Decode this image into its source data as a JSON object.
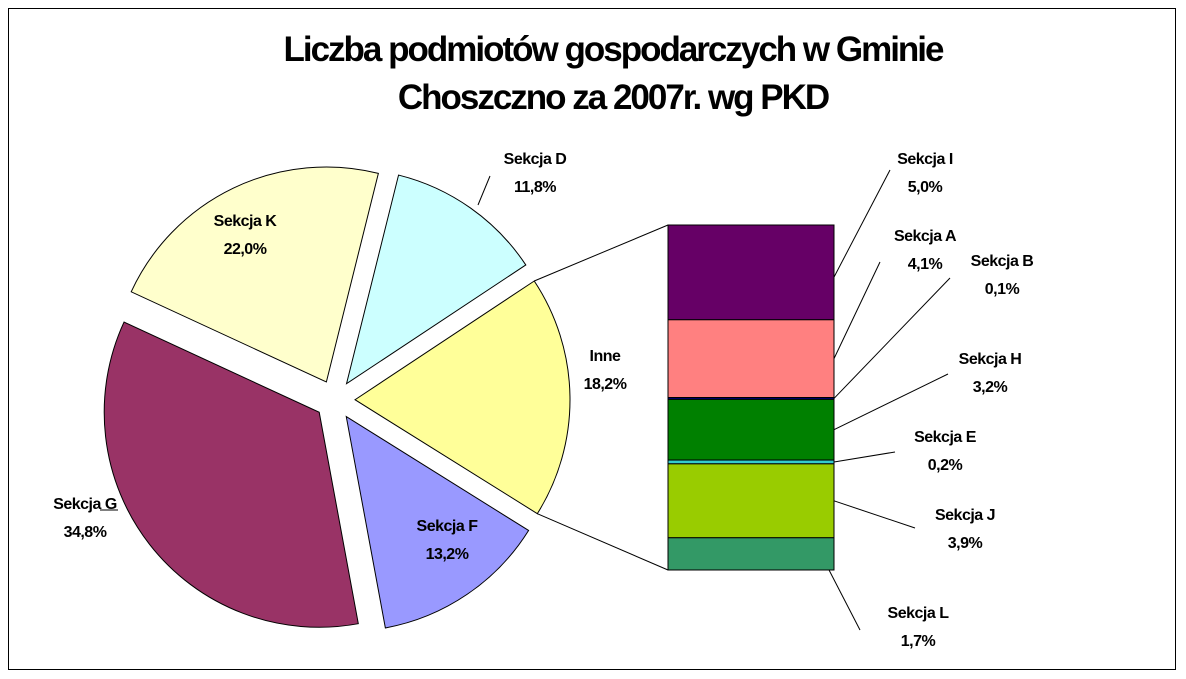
{
  "chart_data": {
    "type": "pie",
    "title": "Liczba podmiotów gospodarczych w Gminie Choszczno za 2007r. wg PKD",
    "categories": [
      "Sekcja D",
      "Inne",
      "Sekcja F",
      "Sekcja G",
      "Sekcja K"
    ],
    "values": [
      11.8,
      18.2,
      13.2,
      34.8,
      22.0
    ],
    "value_labels": [
      "11,8%",
      "18,2%",
      "13,2%",
      "34,8%",
      "22,0%"
    ],
    "colors": [
      "#ccffff",
      "#ffff99",
      "#9999ff",
      "#993366",
      "#ffffcc"
    ],
    "breakdown": {
      "type": "bar",
      "categories": [
        "Sekcja I",
        "Sekcja A",
        "Sekcja B",
        "Sekcja H",
        "Sekcja E",
        "Sekcja J",
        "Sekcja L"
      ],
      "values": [
        5.0,
        4.1,
        0.1,
        3.2,
        0.2,
        3.9,
        1.7
      ],
      "value_labels": [
        "5,0%",
        "4,1%",
        "0,1%",
        "3,2%",
        "0,2%",
        "3,9%",
        "1,7%"
      ],
      "colors": [
        "#660066",
        "#ff8080",
        "#000080",
        "#008000",
        "#33cccc",
        "#99cc00",
        "#339966"
      ]
    }
  }
}
